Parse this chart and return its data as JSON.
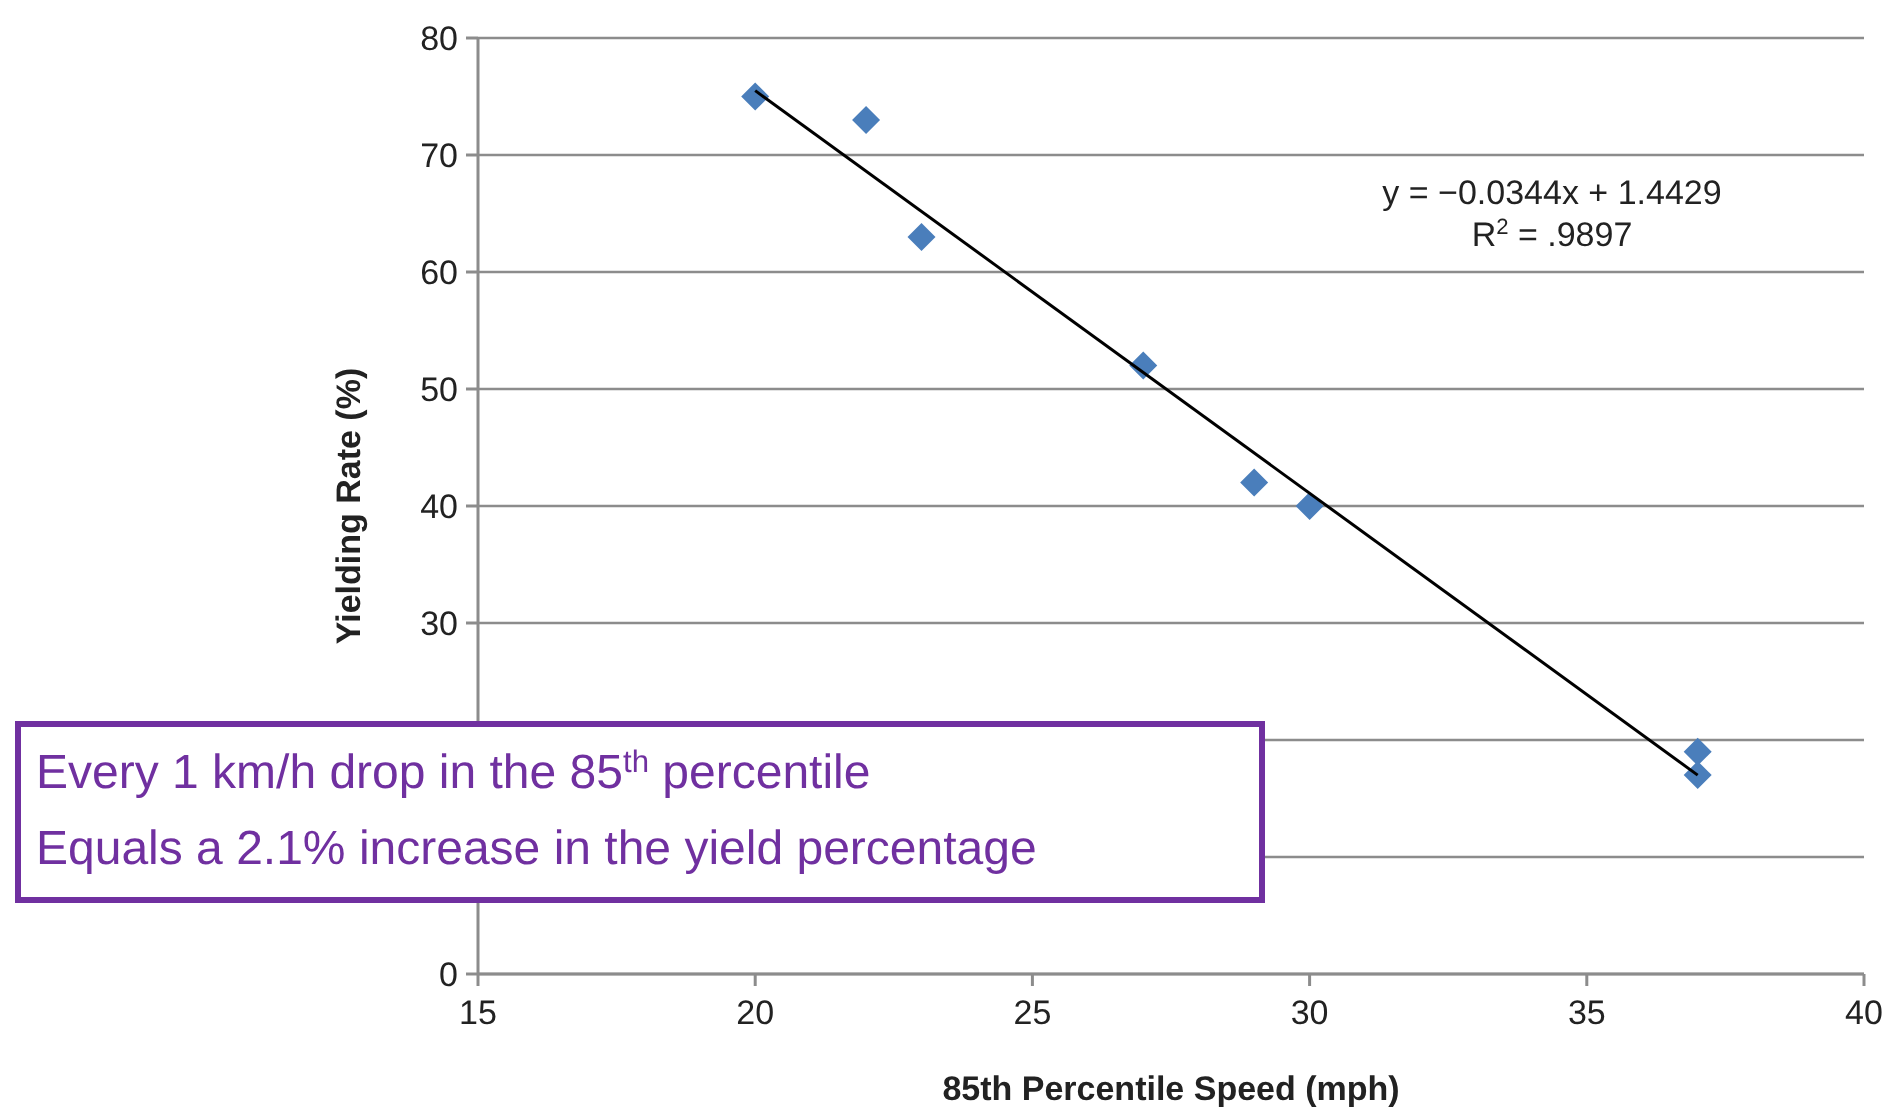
{
  "chart_data": {
    "type": "scatter",
    "xlabel": "85th Percentile Speed (mph)",
    "ylabel": "Yielding Rate (%)",
    "xlim": [
      15,
      40
    ],
    "xticks": [
      15,
      20,
      25,
      30,
      35,
      40
    ],
    "ylim": [
      0,
      80
    ],
    "yticks": [
      0,
      {
        "value": 10,
        "label": null
      },
      {
        "value": 20,
        "label": null
      },
      30,
      40,
      50,
      60,
      70,
      80
    ],
    "grid": "y",
    "marker": "diamond",
    "series": [
      {
        "color": "#4a7ebb",
        "x": [
          20,
          22,
          23,
          27,
          29,
          30,
          37,
          37
        ],
        "values": [
          75,
          73,
          63,
          52,
          42,
          40,
          19,
          17
        ]
      },
      {
        "type": "line",
        "color": "#000000",
        "x": [
          20,
          37
        ],
        "values": [
          75.5,
          17.0
        ],
        "marker": "none"
      }
    ],
    "annotations": [
      {
        "text": "y = −0.0344x + 1.4429\nR$^{2}$ = .9897"
      },
      {
        "text": "Every 1 km/h drop in the 85$^{th}$ percentile\nEquals a 2.1% increase in the yield percentage"
      }
    ]
  }
}
